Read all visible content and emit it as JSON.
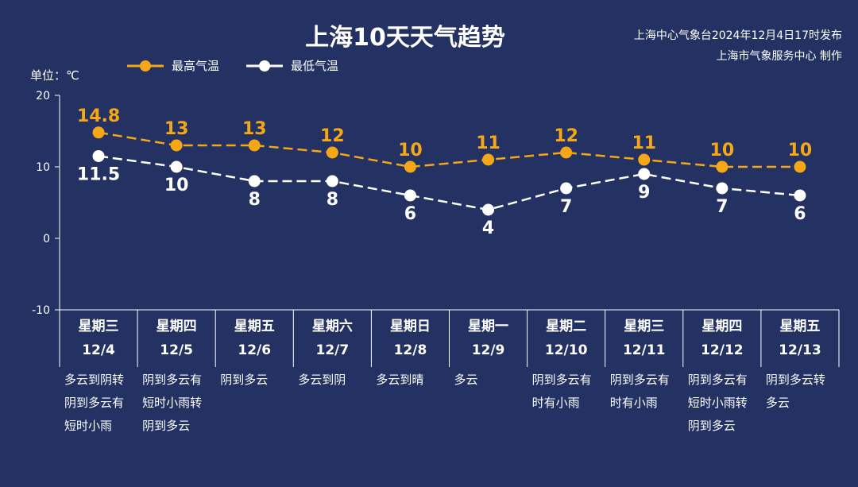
{
  "header": {
    "title": "上海10天天气趋势",
    "publisher_line1": "上海中心气象台2024年12月4日17时发布",
    "publisher_line2": "上海市气象服务中心 制作",
    "unit_label": "单位：℃"
  },
  "colors": {
    "background": "#233262",
    "high": "#f5a717",
    "low": "#ffffff",
    "axis": "#ffffff"
  },
  "chart_data": {
    "type": "line",
    "ylim": [
      -10,
      20
    ],
    "yticks": [
      -10,
      0,
      10,
      20
    ],
    "grid": false,
    "legend_position": "top-left",
    "series": [
      {
        "name": "最高气温",
        "values": [
          14.8,
          13,
          13,
          12,
          10,
          11,
          12,
          11,
          10,
          10
        ]
      },
      {
        "name": "最低气温",
        "values": [
          11.5,
          10,
          8,
          8,
          6,
          4,
          7,
          9,
          7,
          6
        ]
      }
    ],
    "value_labels_high": [
      "14.8",
      "13",
      "13",
      "12",
      "10",
      "11",
      "12",
      "11",
      "10",
      "10"
    ],
    "value_labels_low": [
      "11.5",
      "10",
      "8",
      "8",
      "6",
      "4",
      "7",
      "9",
      "7",
      "6"
    ]
  },
  "days": [
    {
      "weekday": "星期三",
      "date": "12/4",
      "weather": "多云到阴转\n阴到多云有\n短时小雨"
    },
    {
      "weekday": "星期四",
      "date": "12/5",
      "weather": "阴到多云有\n短时小雨转\n阴到多云"
    },
    {
      "weekday": "星期五",
      "date": "12/6",
      "weather": "阴到多云"
    },
    {
      "weekday": "星期六",
      "date": "12/7",
      "weather": "多云到阴"
    },
    {
      "weekday": "星期日",
      "date": "12/8",
      "weather": "多云到晴"
    },
    {
      "weekday": "星期一",
      "date": "12/9",
      "weather": "多云"
    },
    {
      "weekday": "星期二",
      "date": "12/10",
      "weather": "阴到多云有\n时有小雨"
    },
    {
      "weekday": "星期三",
      "date": "12/11",
      "weather": "阴到多云有\n时有小雨"
    },
    {
      "weekday": "星期四",
      "date": "12/12",
      "weather": "阴到多云有\n短时小雨转\n阴到多云"
    },
    {
      "weekday": "星期五",
      "date": "12/13",
      "weather": "阴到多云转\n多云"
    }
  ]
}
